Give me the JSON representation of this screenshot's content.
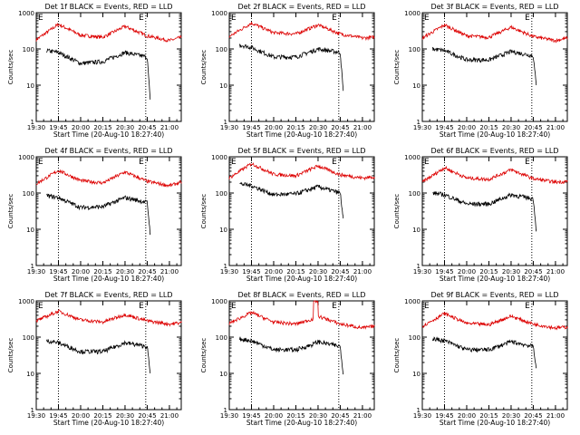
{
  "colors": {
    "events": "#000000",
    "lld": "#dd0000",
    "axis": "#000000"
  },
  "axes": {
    "xlabel": "Start Time (20-Aug-10 18:27:40)",
    "ylabel": "Counts/sec",
    "x_ticks": [
      "19:30",
      "19:45",
      "20:00",
      "20:15",
      "20:30",
      "20:45",
      "21:00"
    ],
    "y_ticks": [
      "1",
      "10",
      "100",
      "1000"
    ],
    "marker_labels": [
      "E",
      "E"
    ]
  },
  "chart_data": [
    {
      "type": "line",
      "title": "Det 1f BLACK = Events, RED = LLD",
      "xlabel": "Start Time (20-Aug-10 18:27:40)",
      "ylabel": "Counts/sec",
      "y_scale": "log",
      "ylim": [
        1,
        1000
      ],
      "xlim": [
        "19:30",
        "21:08"
      ],
      "x_markers": [
        "19:45",
        "20:44"
      ],
      "series": [
        {
          "name": "LLD",
          "color": "#dd0000",
          "x": [
            "19:30",
            "19:45",
            "20:00",
            "20:15",
            "20:30",
            "20:45",
            "21:00",
            "21:08"
          ],
          "values": [
            180,
            480,
            240,
            210,
            420,
            230,
            170,
            210
          ]
        },
        {
          "name": "Events",
          "color": "#000000",
          "x": [
            "19:37",
            "19:45",
            "20:00",
            "20:15",
            "20:30",
            "20:45",
            "20:47"
          ],
          "values": [
            90,
            80,
            40,
            45,
            80,
            60,
            4
          ]
        }
      ]
    },
    {
      "type": "line",
      "title": "Det 2f BLACK = Events, RED = LLD",
      "xlabel": "Start Time (20-Aug-10 18:27:40)",
      "ylabel": "Counts/sec",
      "y_scale": "log",
      "ylim": [
        1,
        1000
      ],
      "xlim": [
        "19:30",
        "21:08"
      ],
      "x_markers": [
        "19:45",
        "20:44"
      ],
      "series": [
        {
          "name": "LLD",
          "color": "#dd0000",
          "x": [
            "19:30",
            "19:45",
            "20:00",
            "20:15",
            "20:30",
            "20:45",
            "21:00",
            "21:08"
          ],
          "values": [
            220,
            520,
            280,
            260,
            460,
            260,
            200,
            210
          ]
        },
        {
          "name": "Events",
          "color": "#000000",
          "x": [
            "19:37",
            "19:45",
            "20:00",
            "20:15",
            "20:30",
            "20:45",
            "20:47"
          ],
          "values": [
            130,
            110,
            60,
            60,
            100,
            80,
            7
          ]
        }
      ]
    },
    {
      "type": "line",
      "title": "Det 3f BLACK = Events, RED = LLD",
      "xlabel": "Start Time (20-Aug-10 18:27:40)",
      "ylabel": "Counts/sec",
      "y_scale": "log",
      "ylim": [
        1,
        1000
      ],
      "xlim": [
        "19:30",
        "21:08"
      ],
      "x_markers": [
        "19:45",
        "20:44"
      ],
      "series": [
        {
          "name": "LLD",
          "color": "#dd0000",
          "x": [
            "19:30",
            "19:45",
            "20:00",
            "20:15",
            "20:30",
            "20:45",
            "21:00",
            "21:08"
          ],
          "values": [
            200,
            460,
            230,
            210,
            400,
            220,
            170,
            200
          ]
        },
        {
          "name": "Events",
          "color": "#000000",
          "x": [
            "19:37",
            "19:45",
            "20:00",
            "20:15",
            "20:30",
            "20:45",
            "20:47"
          ],
          "values": [
            100,
            90,
            50,
            50,
            85,
            65,
            10
          ]
        }
      ]
    },
    {
      "type": "line",
      "title": "Det 4f BLACK = Events, RED = LLD",
      "xlabel": "Start Time (20-Aug-10 18:27:40)",
      "ylabel": "Counts/sec",
      "y_scale": "log",
      "ylim": [
        1,
        1000
      ],
      "xlim": [
        "19:30",
        "21:08"
      ],
      "x_markers": [
        "19:45",
        "20:44"
      ],
      "series": [
        {
          "name": "LLD",
          "color": "#dd0000",
          "x": [
            "19:30",
            "19:45",
            "20:00",
            "20:15",
            "20:30",
            "20:45",
            "21:00",
            "21:08"
          ],
          "values": [
            180,
            420,
            220,
            190,
            380,
            210,
            160,
            200
          ]
        },
        {
          "name": "Events",
          "color": "#000000",
          "x": [
            "19:37",
            "19:45",
            "20:00",
            "20:15",
            "20:30",
            "20:45",
            "20:47"
          ],
          "values": [
            85,
            75,
            40,
            42,
            75,
            55,
            8
          ]
        }
      ]
    },
    {
      "type": "line",
      "title": "Det 5f BLACK = Events, RED = LLD",
      "xlabel": "Start Time (20-Aug-10 18:27:40)",
      "ylabel": "Counts/sec",
      "y_scale": "log",
      "ylim": [
        1,
        1000
      ],
      "xlim": [
        "19:30",
        "21:08"
      ],
      "x_markers": [
        "19:45",
        "20:44"
      ],
      "series": [
        {
          "name": "LLD",
          "color": "#dd0000",
          "x": [
            "19:30",
            "19:45",
            "20:00",
            "20:15",
            "20:30",
            "20:45",
            "21:00",
            "21:08"
          ],
          "values": [
            260,
            650,
            330,
            300,
            560,
            320,
            260,
            280
          ]
        },
        {
          "name": "Events",
          "color": "#000000",
          "x": [
            "19:37",
            "19:45",
            "20:00",
            "20:15",
            "20:30",
            "20:45",
            "20:47"
          ],
          "values": [
            180,
            160,
            90,
            95,
            150,
            100,
            20
          ]
        }
      ]
    },
    {
      "type": "line",
      "title": "Det 6f BLACK = Events, RED = LLD",
      "xlabel": "Start Time (20-Aug-10 18:27:40)",
      "ylabel": "Counts/sec",
      "y_scale": "log",
      "ylim": [
        1,
        1000
      ],
      "xlim": [
        "19:30",
        "21:08"
      ],
      "x_markers": [
        "19:45",
        "20:44"
      ],
      "series": [
        {
          "name": "LLD",
          "color": "#dd0000",
          "x": [
            "19:30",
            "19:45",
            "20:00",
            "20:15",
            "20:30",
            "20:45",
            "21:00",
            "21:08"
          ],
          "values": [
            200,
            500,
            260,
            240,
            440,
            250,
            200,
            210
          ]
        },
        {
          "name": "Events",
          "color": "#000000",
          "x": [
            "19:37",
            "19:45",
            "20:00",
            "20:15",
            "20:30",
            "20:45",
            "20:47"
          ],
          "values": [
            100,
            90,
            50,
            50,
            90,
            70,
            10
          ]
        }
      ]
    },
    {
      "type": "line",
      "title": "Det 7f BLACK = Events, RED = LLD",
      "xlabel": "Start Time (20-Aug-10 18:27:40)",
      "ylabel": "Counts/sec",
      "y_scale": "log",
      "ylim": [
        1,
        1000
      ],
      "xlim": [
        "19:30",
        "21:08"
      ],
      "x_markers": [
        "19:45",
        "20:44"
      ],
      "series": [
        {
          "name": "LLD",
          "color": "#dd0000",
          "x": [
            "19:30",
            "19:45",
            "20:00",
            "20:15",
            "20:30",
            "20:45",
            "21:00",
            "21:08"
          ],
          "values": [
            280,
            520,
            300,
            260,
            420,
            280,
            230,
            250
          ]
        },
        {
          "name": "Events",
          "color": "#000000",
          "x": [
            "19:37",
            "19:45",
            "20:00",
            "20:15",
            "20:30",
            "20:45",
            "20:47"
          ],
          "values": [
            80,
            70,
            40,
            40,
            70,
            55,
            10
          ]
        }
      ]
    },
    {
      "type": "line",
      "title": "Det 8f BLACK = Events, RED = LLD",
      "xlabel": "Start Time (20-Aug-10 18:27:40)",
      "ylabel": "Counts/sec",
      "y_scale": "log",
      "ylim": [
        1,
        1000
      ],
      "xlim": [
        "19:30",
        "21:08"
      ],
      "x_markers": [
        "19:45",
        "20:44"
      ],
      "series": [
        {
          "name": "LLD",
          "color": "#dd0000",
          "x": [
            "19:30",
            "19:45",
            "20:00",
            "20:15",
            "20:27",
            "20:27",
            "20:30",
            "20:30",
            "20:45",
            "21:00",
            "21:08"
          ],
          "values": [
            240,
            480,
            260,
            230,
            320,
            1000,
            1000,
            380,
            230,
            180,
            200
          ]
        },
        {
          "name": "Events",
          "color": "#000000",
          "x": [
            "19:37",
            "19:45",
            "20:00",
            "20:15",
            "20:25",
            "20:30",
            "20:45",
            "20:47"
          ],
          "values": [
            90,
            80,
            45,
            45,
            60,
            75,
            55,
            10
          ]
        }
      ]
    },
    {
      "type": "line",
      "title": "Det 9f BLACK = Events, RED = LLD",
      "xlabel": "Start Time (20-Aug-10 18:27:40)",
      "ylabel": "Counts/sec",
      "y_scale": "log",
      "ylim": [
        1,
        1000
      ],
      "xlim": [
        "19:30",
        "21:08"
      ],
      "x_markers": [
        "19:45",
        "20:44"
      ],
      "series": [
        {
          "name": "LLD",
          "color": "#dd0000",
          "x": [
            "19:30",
            "19:45",
            "20:00",
            "20:15",
            "20:30",
            "20:45",
            "21:00",
            "21:08"
          ],
          "values": [
            200,
            450,
            240,
            220,
            380,
            230,
            180,
            190
          ]
        },
        {
          "name": "Events",
          "color": "#000000",
          "x": [
            "19:37",
            "19:45",
            "20:00",
            "20:15",
            "20:30",
            "20:45",
            "20:47"
          ],
          "values": [
            90,
            80,
            45,
            45,
            75,
            55,
            15
          ]
        }
      ]
    }
  ]
}
